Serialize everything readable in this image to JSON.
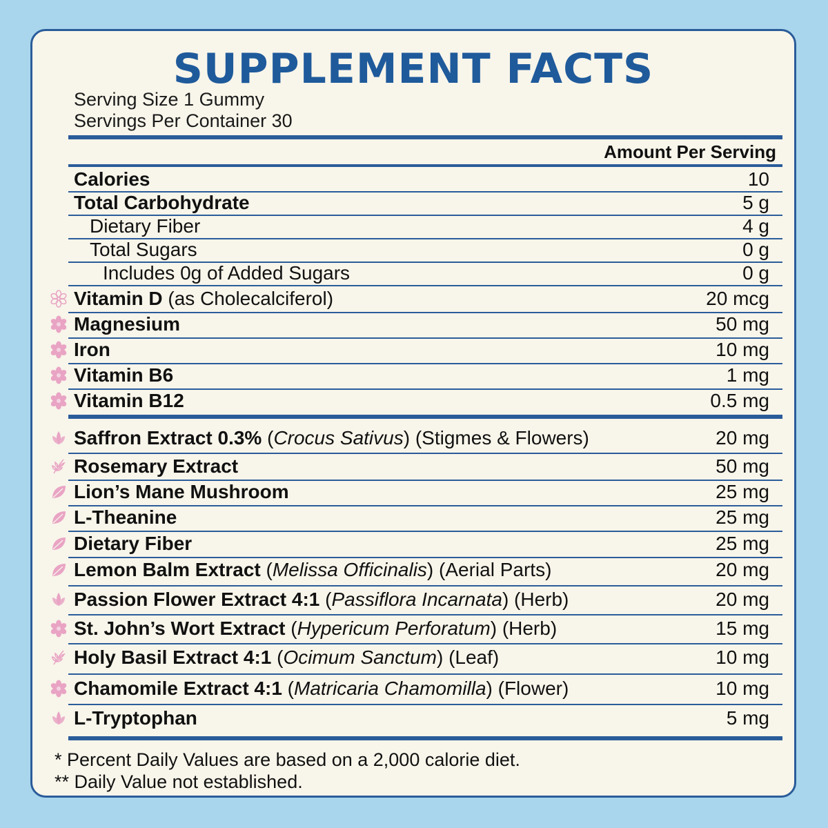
{
  "title": "SUPPLEMENT FACTS",
  "serving_size": "Serving Size 1 Gummy",
  "servings_per_container": "Servings Per Container 30",
  "amount_header": "Amount Per Serving",
  "colors": {
    "accent": "#2a5c9a",
    "title": "#1f5a9b",
    "panel": "#f8f5ea",
    "background": "#a9d6ec",
    "icon": "#e9a4c4"
  },
  "nutrition": [
    {
      "name": "Calories",
      "amount": "10"
    },
    {
      "name": "Total Carbohydrate",
      "amount": "5 g"
    },
    {
      "name": "Dietary Fiber",
      "amount": "4 g"
    },
    {
      "name": "Total Sugars",
      "amount": "0 g"
    },
    {
      "name": "Includes 0g of Added Sugars",
      "amount": "0 g"
    }
  ],
  "vitamins": [
    {
      "name": "Vitamin D",
      "note": "(as Cholecalciferol)",
      "amount": "20 mcg",
      "icon": "flower-outline-icon"
    },
    {
      "name": "Magnesium",
      "amount": "50 mg",
      "icon": "flower-icon"
    },
    {
      "name": "Iron",
      "amount": "10 mg",
      "icon": "flower-icon"
    },
    {
      "name": "Vitamin B6",
      "amount": "1 mg",
      "icon": "flower-icon"
    },
    {
      "name": "Vitamin B12",
      "amount": "0.5 mg",
      "icon": "flower-icon"
    }
  ],
  "extracts": [
    {
      "name": "Saffron Extract 0.3%",
      "latin": "Crocus Sativus",
      "part": "(Stigmes & Flowers)",
      "amount": "20 mg",
      "icon": "lotus-icon"
    },
    {
      "name": "Rosemary Extract",
      "amount": "50 mg",
      "icon": "sprig-icon"
    },
    {
      "name": "Lion’s Mane Mushroom",
      "amount": "25 mg",
      "icon": "leaf-icon"
    },
    {
      "name": "L-Theanine",
      "amount": "25 mg",
      "icon": "leaf-icon"
    },
    {
      "name": "Dietary Fiber",
      "amount": "25 mg",
      "icon": "leaf-icon"
    },
    {
      "name": "Lemon Balm Extract",
      "latin": "Melissa Officinalis",
      "part": "(Aerial Parts)",
      "amount": "20 mg",
      "icon": "leaf-icon"
    },
    {
      "name": "Passion Flower Extract 4:1",
      "latin": "Passiflora Incarnata",
      "part": "(Herb)",
      "amount": "20 mg",
      "icon": "lotus-icon"
    },
    {
      "name": "St. John’s Wort Extract",
      "latin": "Hypericum Perforatum",
      "part": "(Herb)",
      "amount": "15 mg",
      "icon": "flower-icon"
    },
    {
      "name": "Holy Basil Extract 4:1",
      "latin": "Ocimum Sanctum",
      "part": "(Leaf)",
      "amount": "10 mg",
      "icon": "sprig-icon"
    },
    {
      "name": "Chamomile Extract 4:1",
      "latin": "Matricaria Chamomilla",
      "part": "(Flower)",
      "amount": "10 mg",
      "icon": "flower-icon"
    },
    {
      "name": "L-Tryptophan",
      "amount": "5 mg",
      "icon": "lotus-icon"
    }
  ],
  "footnotes": [
    "* Percent Daily Values are based on a 2,000 calorie diet.",
    "** Daily Value not established."
  ]
}
